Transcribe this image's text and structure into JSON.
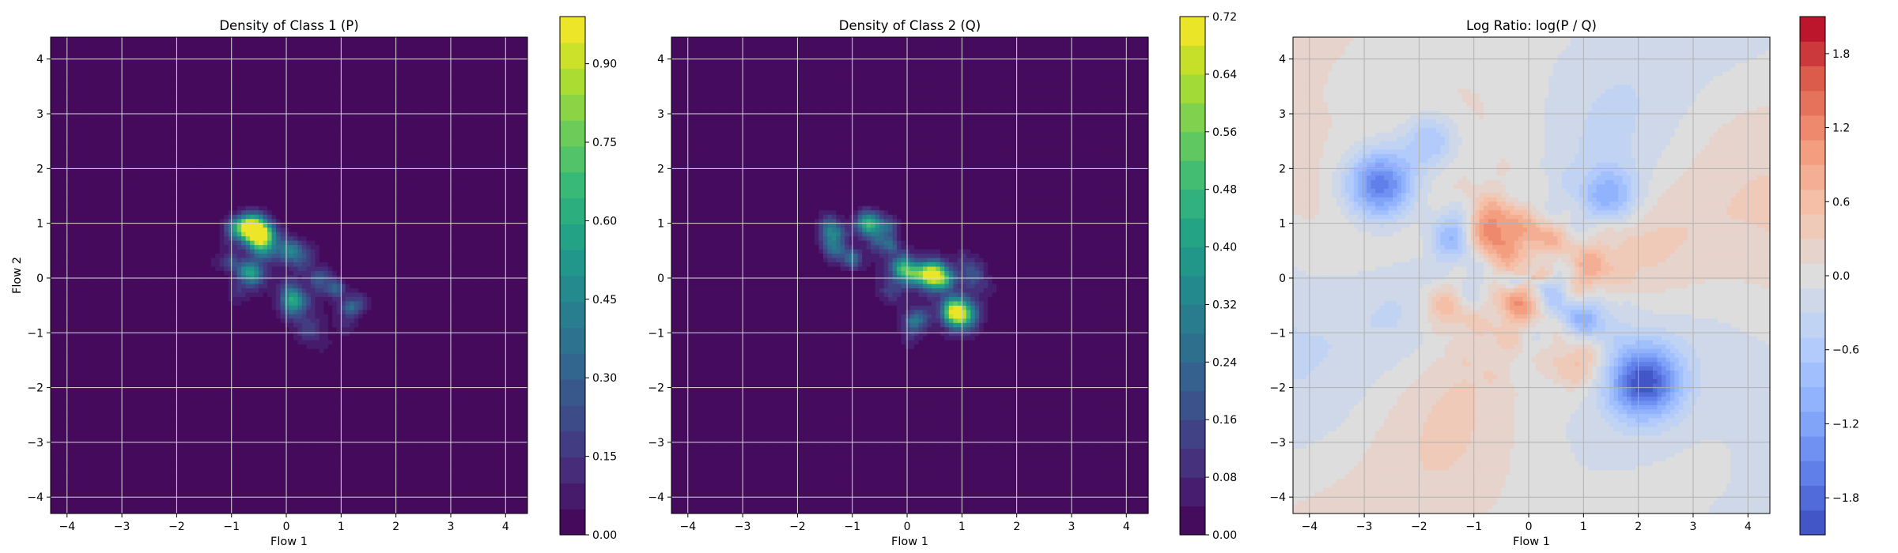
{
  "chart_data": [
    {
      "type": "heatmap",
      "title": "Density of Class 1 (P)",
      "xlabel": "Flow 1",
      "ylabel": "Flow 2",
      "xlim": [
        -4.3,
        4.4
      ],
      "ylim": [
        -4.3,
        4.4
      ],
      "xticks": [
        -4,
        -3,
        -2,
        -1,
        0,
        1,
        2,
        3,
        4
      ],
      "yticks": [
        -4,
        -3,
        -2,
        -1,
        0,
        1,
        2,
        3,
        4
      ],
      "grid": true,
      "colormap": "viridis",
      "colorbar": {
        "range": [
          0.0,
          0.99
        ],
        "ticks": [
          0.0,
          0.15,
          0.3,
          0.45,
          0.6,
          0.75,
          0.9
        ],
        "tick_labels": [
          "0.00",
          "0.15",
          "0.30",
          "0.45",
          "0.60",
          "0.75",
          "0.90"
        ]
      },
      "density_peaks": [
        {
          "x": -0.6,
          "y": 0.9,
          "value": 0.95
        },
        {
          "x": -0.35,
          "y": 0.6,
          "value": 0.35
        },
        {
          "x": 0.1,
          "y": 0.5,
          "value": 0.3
        },
        {
          "x": -0.6,
          "y": 0.05,
          "value": 0.35
        },
        {
          "x": 0.1,
          "y": -0.4,
          "value": 0.45
        },
        {
          "x": 0.9,
          "y": -0.2,
          "value": 0.3
        },
        {
          "x": 1.15,
          "y": -0.55,
          "value": 0.25
        },
        {
          "x": -1.0,
          "y": 0.3,
          "value": 0.2
        },
        {
          "x": 0.4,
          "y": -0.9,
          "value": 0.12
        }
      ]
    },
    {
      "type": "heatmap",
      "title": "Density of Class 2 (Q)",
      "xlabel": "Flow 1",
      "ylabel": "",
      "xlim": [
        -4.3,
        4.4
      ],
      "ylim": [
        -4.3,
        4.4
      ],
      "xticks": [
        -4,
        -3,
        -2,
        -1,
        0,
        1,
        2,
        3,
        4
      ],
      "yticks": [
        -4,
        -3,
        -2,
        -1,
        0,
        1,
        2,
        3,
        4
      ],
      "grid": true,
      "colormap": "viridis",
      "colorbar": {
        "range": [
          0.0,
          0.72
        ],
        "ticks": [
          0.0,
          0.08,
          0.16,
          0.24,
          0.32,
          0.4,
          0.48,
          0.56,
          0.64,
          0.72
        ],
        "tick_labels": [
          "0.00",
          "0.08",
          "0.16",
          "0.24",
          "0.32",
          "0.40",
          "0.48",
          "0.56",
          "0.64",
          "0.72"
        ]
      },
      "density_peaks": [
        {
          "x": 0.5,
          "y": 0.05,
          "value": 0.6
        },
        {
          "x": 1.0,
          "y": -0.65,
          "value": 0.5
        },
        {
          "x": -0.7,
          "y": 1.0,
          "value": 0.35
        },
        {
          "x": 0.0,
          "y": 0.1,
          "value": 0.3
        },
        {
          "x": -1.4,
          "y": 0.85,
          "value": 0.25
        },
        {
          "x": -1.0,
          "y": 0.35,
          "value": 0.25
        },
        {
          "x": 0.1,
          "y": -0.8,
          "value": 0.2
        },
        {
          "x": -0.3,
          "y": 0.6,
          "value": 0.2
        },
        {
          "x": 1.2,
          "y": 0.1,
          "value": 0.15
        }
      ]
    },
    {
      "type": "heatmap",
      "title": "Log Ratio: log(P / Q)",
      "xlabel": "Flow 1",
      "ylabel": "",
      "xlim": [
        -4.3,
        4.4
      ],
      "ylim": [
        -4.3,
        4.4
      ],
      "xticks": [
        -4,
        -3,
        -2,
        -1,
        0,
        1,
        2,
        3,
        4
      ],
      "yticks": [
        -4,
        -3,
        -2,
        -1,
        0,
        1,
        2,
        3,
        4
      ],
      "grid": true,
      "colormap": "coolwarm",
      "colorbar": {
        "range": [
          -2.1,
          2.1
        ],
        "ticks": [
          -1.8,
          -1.2,
          -0.6,
          0.0,
          0.6,
          1.2,
          1.8
        ],
        "tick_labels": [
          "−1.8",
          "−1.2",
          "−0.6",
          "0.0",
          "0.6",
          "1.2",
          "1.8"
        ]
      },
      "ratio_features": [
        {
          "x": -2.7,
          "y": 1.7,
          "value": -1.8
        },
        {
          "x": 2.1,
          "y": -1.9,
          "value": -1.9
        },
        {
          "x": -1.3,
          "y": 0.8,
          "value": -1.2
        },
        {
          "x": 1.5,
          "y": 1.5,
          "value": -0.9
        },
        {
          "x": -1.8,
          "y": 2.5,
          "value": -0.8
        },
        {
          "x": 0.5,
          "y": 0.05,
          "value": -1.1
        },
        {
          "x": 1.0,
          "y": -0.7,
          "value": -0.9
        },
        {
          "x": -0.7,
          "y": 0.9,
          "value": 1.5
        },
        {
          "x": 0.25,
          "y": 0.6,
          "value": 1.1
        },
        {
          "x": -1.5,
          "y": -0.5,
          "value": 0.9
        },
        {
          "x": 0.9,
          "y": -0.1,
          "value": 0.9
        },
        {
          "x": 0.9,
          "y": -1.5,
          "value": 0.7
        },
        {
          "x": -0.2,
          "y": -0.4,
          "value": 0.8
        }
      ]
    }
  ]
}
